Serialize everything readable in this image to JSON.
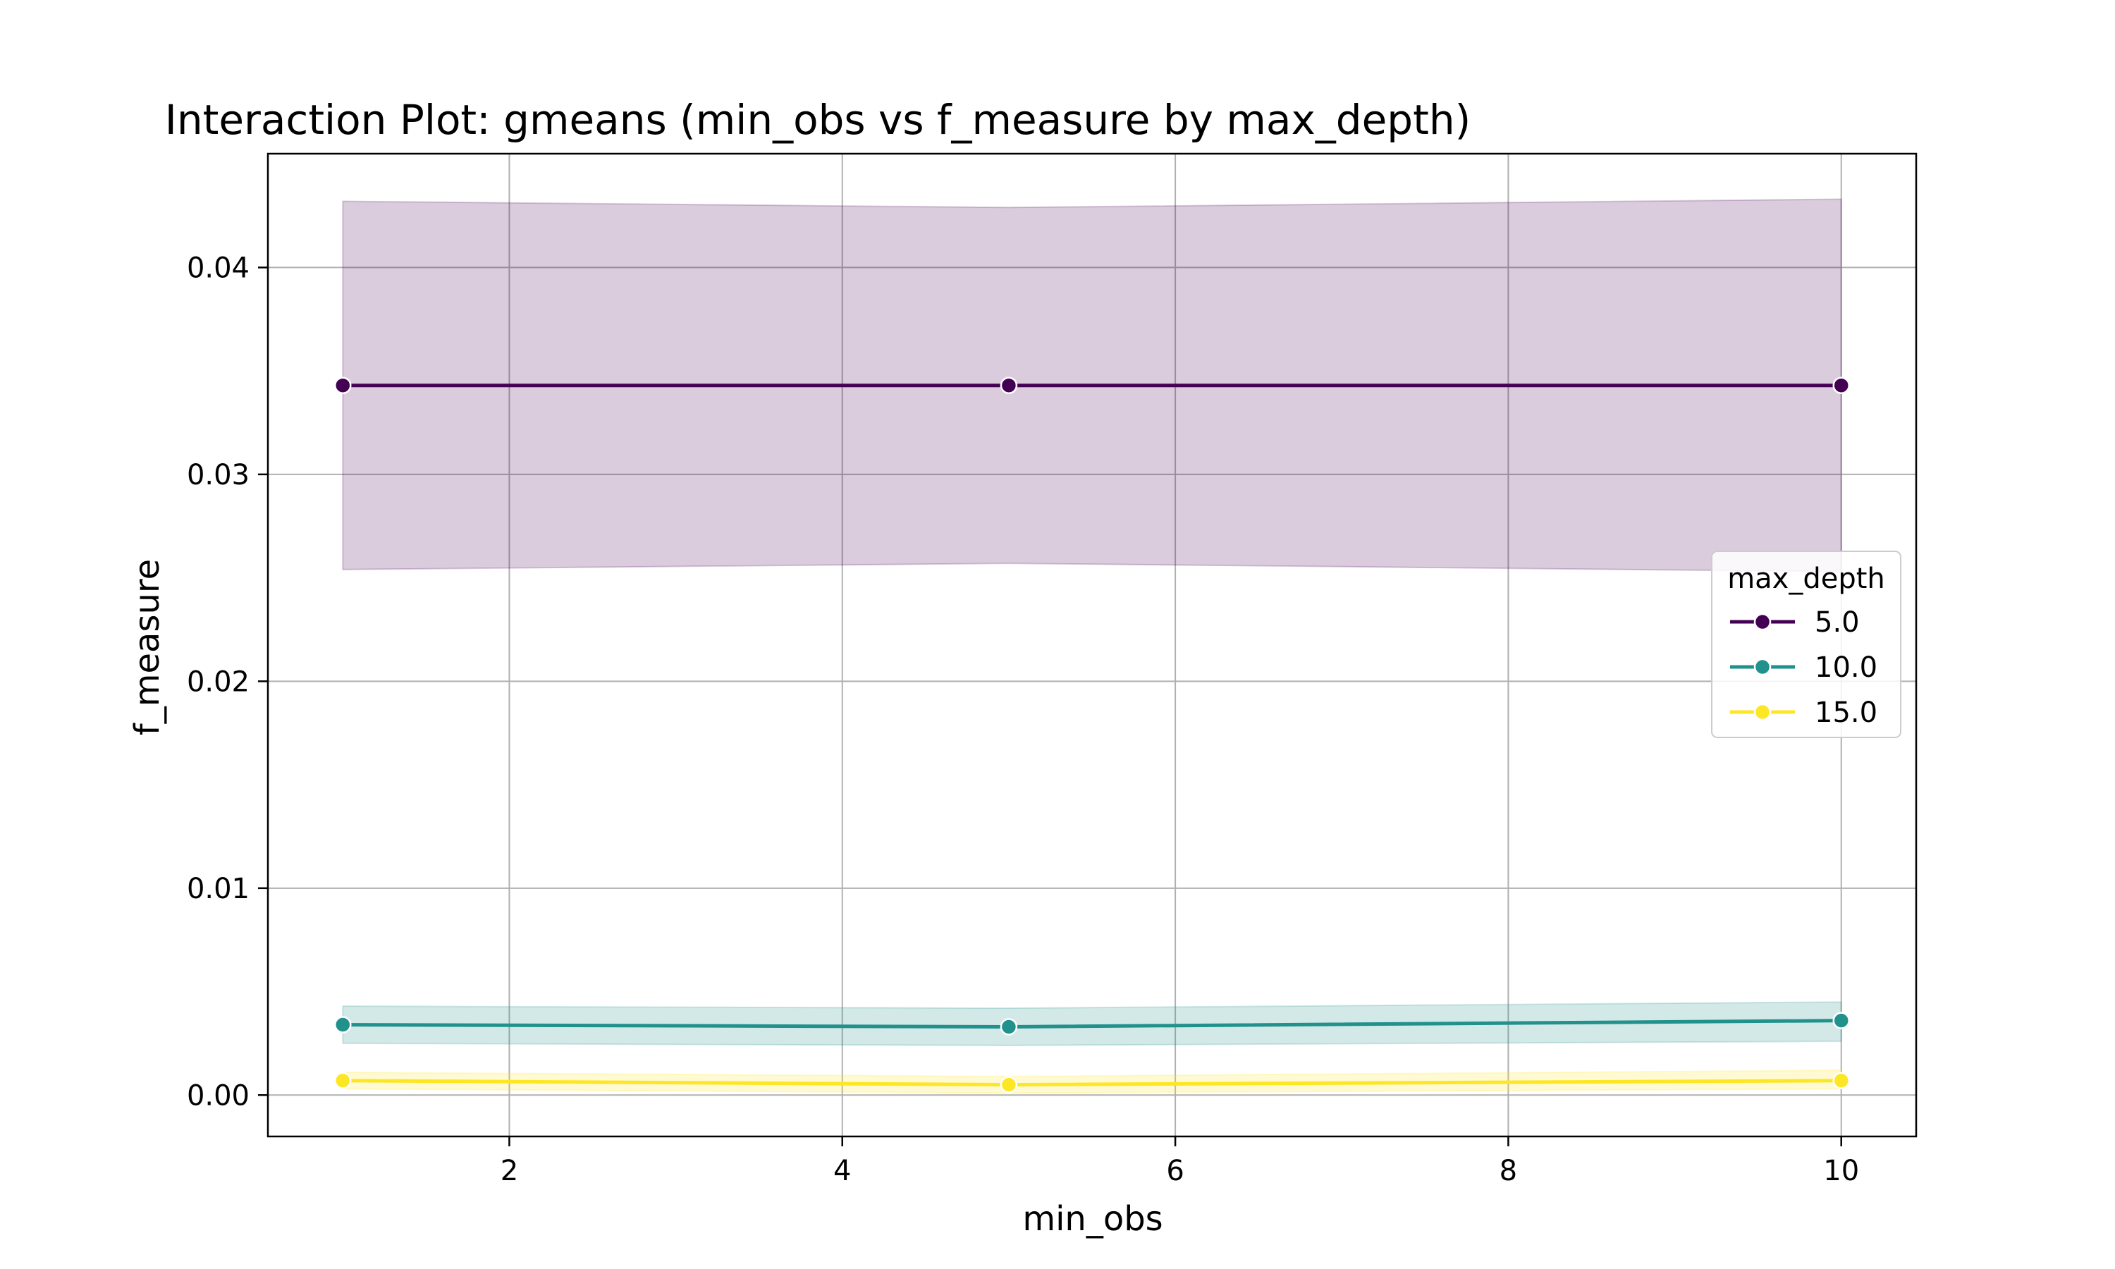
{
  "chart_data": {
    "type": "line",
    "title": "Interaction Plot: gmeans (min_obs vs f_measure by max_depth)",
    "xlabel": "min_obs",
    "ylabel": "f_measure",
    "xlim": [
      0.55,
      10.45
    ],
    "ylim": [
      -0.002,
      0.0455
    ],
    "xticks": [
      2,
      4,
      6,
      8,
      10
    ],
    "xtick_labels": [
      "2",
      "4",
      "6",
      "8",
      "10"
    ],
    "yticks": [
      0.0,
      0.01,
      0.02,
      0.03,
      0.04
    ],
    "ytick_labels": [
      "0.00",
      "0.01",
      "0.02",
      "0.03",
      "0.04"
    ],
    "grid": true,
    "legend": {
      "title": "max_depth",
      "position": "center-right"
    },
    "x": [
      1,
      5,
      10
    ],
    "series": [
      {
        "name": "5.0",
        "color": "#440154",
        "values": [
          0.0343,
          0.0343,
          0.0343
        ],
        "ci_lower": [
          0.0254,
          0.0257,
          0.0253
        ],
        "ci_upper": [
          0.0432,
          0.0429,
          0.0433
        ]
      },
      {
        "name": "10.0",
        "color": "#21918c",
        "values": [
          0.0034,
          0.0033,
          0.0036
        ],
        "ci_lower": [
          0.0025,
          0.0024,
          0.0026
        ],
        "ci_upper": [
          0.0043,
          0.0042,
          0.0045
        ]
      },
      {
        "name": "15.0",
        "color": "#fde725",
        "values": [
          0.0007,
          0.0005,
          0.0007
        ],
        "ci_lower": [
          0.0003,
          0.0001,
          0.0003
        ],
        "ci_upper": [
          0.0011,
          0.0009,
          0.0012
        ]
      }
    ]
  }
}
